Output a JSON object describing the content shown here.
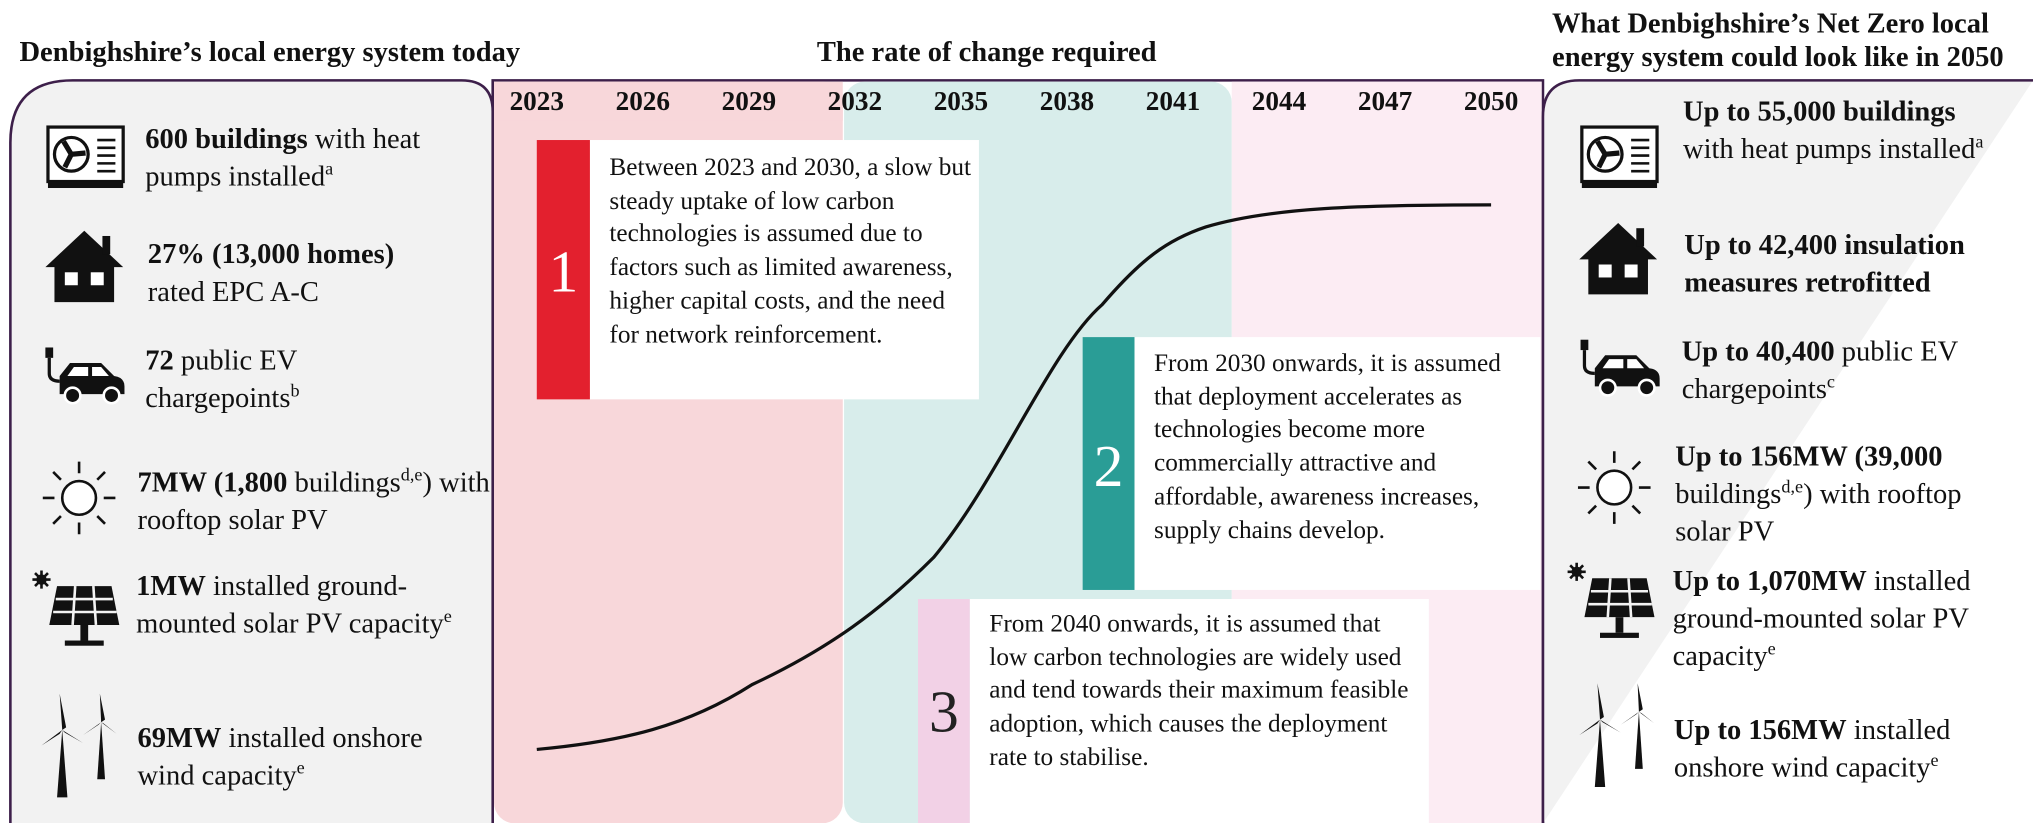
{
  "left": {
    "title": "Denbighshire’s local energy system today",
    "items": [
      {
        "runs": [
          {
            "text": "600 buildings",
            "style": "b"
          },
          {
            "text": " with heat pumps installed"
          },
          {
            "text": "a",
            "style": "sup"
          }
        ]
      },
      {
        "runs": [
          {
            "text": "27% (13,000 homes)",
            "style": "b"
          },
          {
            "text": " rated EPC A-C"
          }
        ]
      },
      {
        "runs": [
          {
            "text": "72",
            "style": "b"
          },
          {
            "text": " public EV chargepoints"
          },
          {
            "text": "b",
            "style": "sup"
          }
        ]
      },
      {
        "runs": [
          {
            "text": "7MW (1,800",
            "style": "b"
          },
          {
            "text": " buildings"
          },
          {
            "text": "d,e",
            "style": "sup"
          },
          {
            "text": ") with rooftop solar PV"
          }
        ]
      },
      {
        "runs": [
          {
            "text": "1MW",
            "style": "b"
          },
          {
            "text": " installed ground-mounted solar PV capacity"
          },
          {
            "text": "e",
            "style": "sup"
          }
        ]
      },
      {
        "runs": [
          {
            "text": "69MW",
            "style": "b"
          },
          {
            "text": " installed onshore wind capacity"
          },
          {
            "text": "e",
            "style": "sup"
          }
        ]
      }
    ]
  },
  "middle": {
    "title": "The rate of change required",
    "years": [
      "2023",
      "2026",
      "2029",
      "2032",
      "2035",
      "2038",
      "2041",
      "2044",
      "2047",
      "2050"
    ],
    "stages": [
      {
        "number": "1",
        "text": "Between 2023 and 2030, a slow but steady uptake of low carbon technologies is assumed due to factors such as limited awareness, higher capital costs, and the need for network reinforcement."
      },
      {
        "number": "2",
        "text": "From 2030 onwards, it is assumed that deployment accelerates as technologies become more commercially attractive and affordable, awareness increases, supply chains develop."
      },
      {
        "number": "3",
        "text": "From 2040 onwards, it is assumed that low carbon technologies are widely used and tend towards their maximum feasible adoption, which causes the deployment rate to stabilise."
      }
    ]
  },
  "right": {
    "title": "What Denbighshire’s Net Zero local energy system could look like in 2050",
    "items": [
      {
        "runs": [
          {
            "text": "Up to 55,000 buildings",
            "style": "b"
          },
          {
            "text": " with heat pumps installed"
          },
          {
            "text": "a",
            "style": "sup"
          }
        ]
      },
      {
        "runs": [
          {
            "text": "Up to 42,400 insulation measures retrofitted",
            "style": "b"
          }
        ]
      },
      {
        "runs": [
          {
            "text": "Up to 40,400",
            "style": "b"
          },
          {
            "text": " public EV chargepoints"
          },
          {
            "text": "c",
            "style": "sup"
          }
        ]
      },
      {
        "runs": [
          {
            "text": "Up to 156MW (39,000",
            "style": "b"
          },
          {
            "text": " buildings"
          },
          {
            "text": "d,e",
            "style": "sup"
          },
          {
            "text": ") with rooftop solar PV"
          }
        ]
      },
      {
        "runs": [
          {
            "text": "Up to 1,070MW",
            "style": "b"
          },
          {
            "text": " installed ground-mounted solar PV capacity"
          },
          {
            "text": "e",
            "style": "sup"
          }
        ]
      },
      {
        "runs": [
          {
            "text": "Up to 156MW",
            "style": "b"
          },
          {
            "text": " installed onshore wind capacity"
          },
          {
            "text": "e",
            "style": "sup"
          }
        ]
      }
    ]
  }
}
